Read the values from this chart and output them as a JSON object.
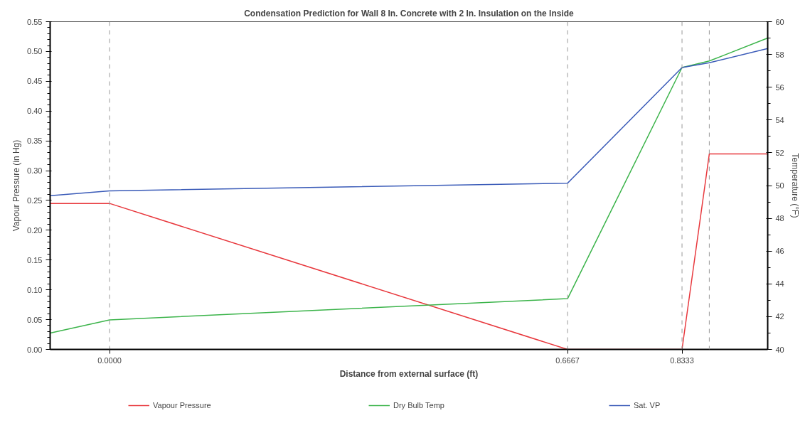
{
  "chart_data": {
    "type": "line",
    "title": "Condensation Prediction for Wall 8 In. Concrete with 2 In. Insulation on the Inside",
    "xlabel": "Distance from external surface (ft)",
    "ylabel": "Vapour Pressure (in Hg)",
    "y2label": "Temperature (°F)",
    "x": [
      -0.0865,
      0,
      0.6667,
      0.8333,
      0.873,
      0.958
    ],
    "xlim": [
      -0.0865,
      0.958
    ],
    "xticks": [
      {
        "value": 0,
        "label": "0.0000"
      },
      0.6667,
      0.8333
    ],
    "ylim": [
      0,
      0.55
    ],
    "yticks": [
      {
        "value": 0,
        "label": "0.00"
      },
      0.05,
      {
        "value": 0.1,
        "label": "0.10"
      },
      0.15,
      {
        "value": 0.2,
        "label": "0.20"
      },
      0.25,
      {
        "value": 0.3,
        "label": "0.30"
      },
      0.35,
      {
        "value": 0.4,
        "label": "0.40"
      },
      0.45,
      {
        "value": 0.5,
        "label": "0.50"
      },
      0.55
    ],
    "y2lim": [
      40,
      60
    ],
    "y2ticks": [
      40,
      42,
      44,
      46,
      48,
      50,
      52,
      54,
      56,
      58,
      60
    ],
    "series": [
      {
        "name": "Vapour Pressure",
        "color": "#e8383d",
        "values": [
          0.245,
          0.245,
          0,
          0,
          0.328,
          0.328
        ]
      },
      {
        "name": "Dry Bulb Temp",
        "color": "#3cb44b",
        "axis": "y2",
        "values": [
          41.0,
          41.8,
          43.1,
          57.2,
          57.6,
          59.0
        ]
      },
      {
        "name": "Sat. VP",
        "color": "#3a5bb8",
        "values": [
          0.258,
          0.266,
          0.279,
          0.473,
          0.481,
          0.505
        ]
      }
    ],
    "ref_lines": [
      {
        "axis": "x",
        "value": 0,
        "label": null,
        "color": "#999999",
        "line_style": "dashed"
      },
      {
        "axis": "x",
        "value": 0.6667,
        "label": null,
        "color": "#999999",
        "line_style": "dashed"
      },
      {
        "axis": "x",
        "value": 0.8333,
        "label": null,
        "color": "#999999",
        "line_style": "dashed"
      },
      {
        "axis": "x",
        "value": 0.873,
        "label": null,
        "color": "#999999",
        "line_style": "dashed"
      }
    ],
    "grid": false,
    "legend": "bottom",
    "marker": "none",
    "line_style": "solid"
  }
}
